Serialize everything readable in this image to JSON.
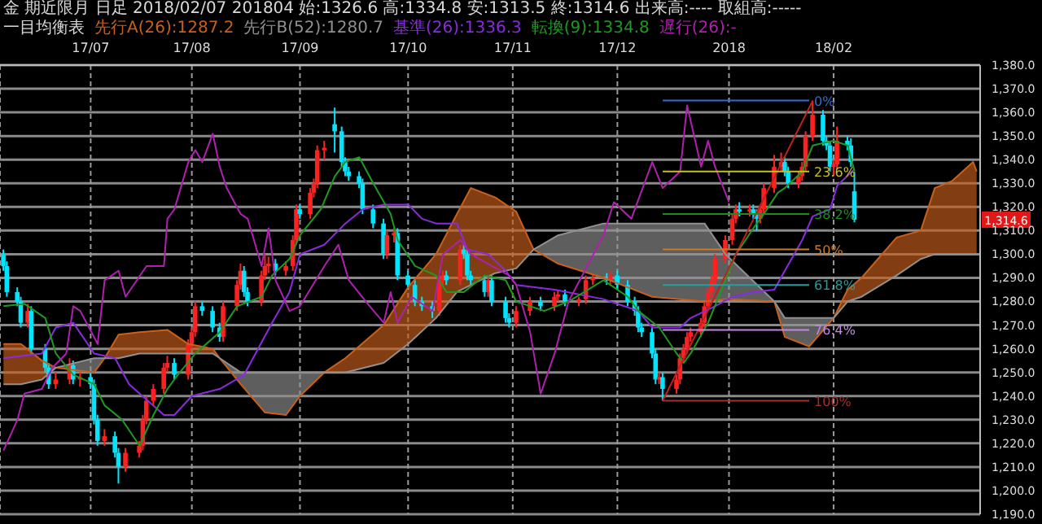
{
  "chart_data": {
    "type": "candlestick",
    "title": "金 期近限月 日足 2018/02/07 201804 始:1326.6 高:1334.8 安:1313.5 終:1314.6 出来高:---- 取組高:-----",
    "legend_title": "一目均衡表",
    "legend": "top",
    "grid": true,
    "xlim": [
      "2017-06-07",
      "2018-03-15"
    ],
    "xticks": [
      {
        "value": "2017-07-03",
        "label": "17/07"
      },
      {
        "value": "2017-08-01",
        "label": "17/08"
      },
      {
        "value": "2017-09-01",
        "label": "17/09"
      },
      {
        "value": "2017-10-02",
        "label": "17/10"
      },
      {
        "value": "2017-11-01",
        "label": "17/11"
      },
      {
        "value": "2017-12-01",
        "label": "17/12"
      },
      {
        "value": "2018-01-02",
        "label": "2018"
      },
      {
        "value": "2018-02-01",
        "label": "18/02"
      }
    ],
    "ylim": [
      1190,
      1380
    ],
    "yticks": [
      {
        "value": 1190,
        "label": "1,190.0"
      },
      {
        "value": 1200,
        "label": "1,200.0"
      },
      {
        "value": 1210,
        "label": "1,210.0"
      },
      {
        "value": 1220,
        "label": "1,220.0"
      },
      {
        "value": 1230,
        "label": "1,230.0"
      },
      {
        "value": 1240,
        "label": "1,240.0"
      },
      {
        "value": 1250,
        "label": "1,250.0"
      },
      {
        "value": 1260,
        "label": "1,260.0"
      },
      {
        "value": 1270,
        "label": "1,270.0"
      },
      {
        "value": 1280,
        "label": "1,280.0"
      },
      {
        "value": 1290,
        "label": "1,290.0"
      },
      {
        "value": 1300,
        "label": "1,300.0"
      },
      {
        "value": 1310,
        "label": "1,310.0"
      },
      {
        "value": 1320,
        "label": "1,320.0"
      },
      {
        "value": 1330,
        "label": "1,330.0"
      },
      {
        "value": 1340,
        "label": "1,340.0"
      },
      {
        "value": 1350,
        "label": "1,350.0"
      },
      {
        "value": 1360,
        "label": "1,360.0"
      },
      {
        "value": 1370,
        "label": "1,370.0"
      },
      {
        "value": 1380,
        "label": "1,380.0"
      }
    ],
    "annotations": [
      {
        "text": "1,314.6",
        "y": 1314.6
      },
      {
        "text": "0%",
        "x": "2018-01-25",
        "y": 1365
      },
      {
        "text": "23.6%",
        "x": "2018-01-25",
        "y": 1335
      },
      {
        "text": "38.2%",
        "x": "2018-01-25",
        "y": 1317
      },
      {
        "text": "50%",
        "x": "2018-01-25",
        "y": 1302
      },
      {
        "text": "61.8%",
        "x": "2018-01-25",
        "y": 1287
      },
      {
        "text": "76.4%",
        "x": "2018-01-25",
        "y": 1268
      },
      {
        "text": "100%",
        "x": "2018-01-25",
        "y": 1238
      }
    ],
    "series": [
      {
        "type": "line",
        "name": "先行A(26):1287.2",
        "color": "#c8601c",
        "lower": [
          1245,
          1245,
          1247,
          1252,
          null,
          1256,
          1256,
          1258,
          1258,
          1258,
          1258,
          1256,
          null,
          null,
          null,
          null,
          1250,
          1250,
          1254,
          1262,
          1273,
          1284,
          1287,
          1292,
          1294,
          1302,
          null,
          null,
          null,
          null,
          null,
          null,
          null,
          null,
          1273,
          1280,
          1282,
          1291,
          1298,
          1300,
          1300,
          1300,
          1300
        ],
        "upper": [
          1262,
          1262,
          1255,
          1252,
          null,
          1256,
          1266,
          1267,
          1268,
          1262,
          1260,
          1256,
          null,
          null,
          null,
          null,
          1250,
          1256,
          1270,
          1286,
          1300,
          1317,
          1328,
          1324,
          1318,
          1302,
          null,
          null,
          null,
          null,
          null,
          null,
          null,
          null,
          1273,
          1285,
          1290,
          1307,
          1310,
          1328,
          1331,
          1339,
          1335
        ],
        "x": [
          "2017-06-08",
          "2017-06-13",
          "2017-06-19",
          "2017-06-23",
          "2017-07-04",
          "2017-07-07",
          "2017-07-11",
          "2017-07-17",
          "2017-07-25",
          "2017-07-31",
          "2017-08-07",
          "2017-08-09",
          "2017-08-15",
          "2017-08-22",
          "2017-08-28",
          "2017-09-01",
          "2017-09-08",
          "2017-09-14",
          "2017-09-25",
          "2017-10-02",
          "2017-10-10",
          "2017-10-16",
          "2017-10-20",
          "2017-10-27",
          "2017-11-02",
          "2017-11-07",
          "2017-11-14",
          "2017-11-27",
          "2017-12-11",
          "2017-12-26",
          "2018-01-01",
          "2018-01-15",
          "2018-01-18",
          "2018-01-25",
          "2018-02-01",
          "2018-02-05",
          "2018-02-09",
          "2018-02-19",
          "2018-02-26",
          "2018-03-02",
          "2018-03-07",
          "2018-03-13",
          "2018-03-14"
        ],
        "values": [
          1262,
          1262,
          1255,
          1252,
          1250,
          1256,
          1266,
          1267,
          1268,
          1262,
          1260,
          1256,
          1245,
          1233,
          1232,
          1240,
          1250,
          1256,
          1270,
          1286,
          1300,
          1317,
          1328,
          1324,
          1318,
          1302,
          1296,
          1290,
          1282,
          1280,
          1281,
          1280,
          1265,
          1261,
          1273,
          1285,
          1290,
          1307,
          1310,
          1328,
          1331,
          1339,
          1335
        ]
      },
      {
        "type": "line",
        "name": "先行B(52):1280.7",
        "color": "#909090",
        "lower": [
          null,
          null,
          null,
          1252,
          1250,
          1256,
          null,
          null,
          null,
          null,
          null,
          1256,
          1245,
          1233,
          1232,
          1240,
          1250,
          null,
          null,
          null,
          null,
          null,
          null,
          null,
          null,
          1302,
          1296,
          1290,
          1282,
          1280,
          1281,
          1280,
          1265,
          1261,
          1273,
          null,
          null,
          null,
          null,
          null,
          null,
          null,
          null
        ],
        "upper": [
          null,
          null,
          null,
          1252,
          1256,
          1256,
          null,
          null,
          null,
          null,
          null,
          1256,
          1250,
          1250,
          1250,
          1250,
          1250,
          null,
          null,
          null,
          null,
          null,
          null,
          null,
          null,
          1302,
          1308,
          1313,
          1313,
          1313,
          1300,
          1280,
          1273,
          1273,
          1273,
          null,
          null,
          null,
          null,
          null,
          null,
          null,
          null
        ],
        "x": [
          "2017-06-08",
          "2017-06-13",
          "2017-06-19",
          "2017-06-23",
          "2017-07-04",
          "2017-07-07",
          "2017-07-11",
          "2017-07-17",
          "2017-07-25",
          "2017-07-31",
          "2017-08-07",
          "2017-08-09",
          "2017-08-15",
          "2017-08-22",
          "2017-08-28",
          "2017-09-01",
          "2017-09-08",
          "2017-09-14",
          "2017-09-25",
          "2017-10-02",
          "2017-10-10",
          "2017-10-16",
          "2017-10-20",
          "2017-10-27",
          "2017-11-02",
          "2017-11-07",
          "2017-11-14",
          "2017-11-27",
          "2017-12-11",
          "2017-12-26",
          "2018-01-01",
          "2018-01-15",
          "2018-01-18",
          "2018-01-25",
          "2018-02-01",
          "2018-02-05",
          "2018-02-09",
          "2018-02-19",
          "2018-02-26",
          "2018-03-02",
          "2018-03-07",
          "2018-03-13",
          "2018-03-14"
        ],
        "values": [
          1245,
          1245,
          1247,
          1252,
          1256,
          1256,
          1256,
          1258,
          1258,
          1258,
          1258,
          1256,
          1250,
          1250,
          1250,
          1250,
          1250,
          1250,
          1254,
          1262,
          1273,
          1284,
          1287,
          1292,
          1294,
          1302,
          1308,
          1313,
          1313,
          1313,
          1300,
          1280,
          1273,
          1273,
          1273,
          1280,
          1282,
          1291,
          1298,
          1300,
          1300,
          1300,
          1300
        ]
      },
      {
        "type": "line",
        "name": "基準(26):1336.3",
        "color": "#8a2be2",
        "x": [
          "2017-06-08",
          "2017-06-19",
          "2017-06-23",
          "2017-06-28",
          "2017-07-04",
          "2017-07-10",
          "2017-07-14",
          "2017-07-24",
          "2017-07-27",
          "2017-08-01",
          "2017-08-09",
          "2017-08-16",
          "2017-08-24",
          "2017-08-29",
          "2017-09-01",
          "2017-09-08",
          "2017-09-14",
          "2017-09-19",
          "2017-09-25",
          "2017-10-02",
          "2017-10-06",
          "2017-10-10",
          "2017-10-16",
          "2017-10-19",
          "2017-10-25",
          "2017-10-30",
          "2017-11-02",
          "2017-11-13",
          "2017-11-27",
          "2017-12-07",
          "2017-12-11",
          "2017-12-19",
          "2017-12-22",
          "2017-12-29",
          "2018-01-03",
          "2018-01-09",
          "2018-01-15",
          "2018-01-18",
          "2018-01-23",
          "2018-01-26",
          "2018-01-31",
          "2018-02-02",
          "2018-02-07"
        ],
        "values": [
          1256,
          1258,
          1269,
          1271,
          1258,
          1256,
          1245,
          1232,
          1232,
          1240,
          1243,
          1249,
          1271,
          1284,
          1300,
          1304,
          1313,
          1319,
          1321,
          1321,
          1315,
          1313,
          1313,
          1302,
          1300,
          1293,
          1287,
          1285,
          1281,
          1276,
          1269,
          1269,
          1273,
          1278,
          1282,
          1284,
          1285,
          1293,
          1306,
          1316,
          1319,
          1329,
          1336
        ]
      },
      {
        "type": "line",
        "name": "転換(9):1334.8",
        "color": "#1f9a1f",
        "x": [
          "2017-06-08",
          "2017-06-14",
          "2017-06-20",
          "2017-06-23",
          "2017-06-28",
          "2017-07-04",
          "2017-07-07",
          "2017-07-12",
          "2017-07-17",
          "2017-07-21",
          "2017-07-25",
          "2017-07-28",
          "2017-08-02",
          "2017-08-09",
          "2017-08-14",
          "2017-08-21",
          "2017-08-24",
          "2017-08-29",
          "2017-09-01",
          "2017-09-07",
          "2017-09-11",
          "2017-09-14",
          "2017-09-18",
          "2017-09-22",
          "2017-09-27",
          "2017-09-29",
          "2017-10-04",
          "2017-10-10",
          "2017-10-13",
          "2017-10-18",
          "2017-10-24",
          "2017-10-30",
          "2017-11-02",
          "2017-11-10",
          "2017-11-17",
          "2017-11-27",
          "2017-12-04",
          "2017-12-07",
          "2017-12-13",
          "2017-12-18",
          "2017-12-20",
          "2017-12-22",
          "2017-12-27",
          "2018-01-01",
          "2018-01-04",
          "2018-01-09",
          "2018-01-12",
          "2018-01-16",
          "2018-01-18",
          "2018-01-23",
          "2018-01-26",
          "2018-02-01",
          "2018-02-05",
          "2018-02-07"
        ],
        "values": [
          1278,
          1279,
          1273,
          1258,
          1249,
          1245,
          1236,
          1230,
          1219,
          1232,
          1243,
          1249,
          1258,
          1267,
          1278,
          1282,
          1291,
          1298,
          1308,
          1319,
          1333,
          1339,
          1341,
          1330,
          1317,
          1306,
          1295,
          1291,
          1284,
          1284,
          1291,
          1289,
          1280,
          1276,
          1280,
          1289,
          1282,
          1276,
          1269,
          1258,
          1254,
          1258,
          1271,
          1289,
          1300,
          1311,
          1317,
          1326,
          1328,
          1335,
          1346,
          1348,
          1346,
          1335
        ]
      },
      {
        "type": "line",
        "name": "遅行(26):-",
        "color": "#b020b0",
        "x": [
          "2017-06-08",
          "2017-06-12",
          "2017-06-14",
          "2017-06-19",
          "2017-06-22",
          "2017-06-26",
          "2017-06-28",
          "2017-06-30",
          "2017-07-05",
          "2017-07-07",
          "2017-07-11",
          "2017-07-13",
          "2017-07-19",
          "2017-07-24",
          "2017-07-25",
          "2017-07-27",
          "2017-07-31",
          "2017-08-02",
          "2017-08-04",
          "2017-08-07",
          "2017-08-09",
          "2017-08-11",
          "2017-08-15",
          "2017-08-17",
          "2017-08-21",
          "2017-08-23",
          "2017-08-25",
          "2017-08-29",
          "2017-09-01",
          "2017-09-08",
          "2017-09-12",
          "2017-09-15",
          "2017-09-21",
          "2017-09-25",
          "2017-09-27",
          "2017-09-29",
          "2017-10-03",
          "2017-10-09",
          "2017-10-12",
          "2017-10-17",
          "2017-10-20",
          "2017-10-26",
          "2017-10-31",
          "2017-11-02",
          "2017-11-06",
          "2017-11-09",
          "2017-11-13",
          "2017-11-17",
          "2017-11-27",
          "2017-11-30",
          "2017-12-05",
          "2017-12-11",
          "2017-12-14",
          "2017-12-19",
          "2017-12-21",
          "2017-12-25",
          "2017-12-27",
          "2017-12-29",
          "2018-01-02"
        ],
        "values": [
          1217,
          1230,
          1241,
          1243,
          1252,
          1258,
          1278,
          1276,
          1262,
          1289,
          1293,
          1282,
          1295,
          1295,
          1315,
          1319,
          1339,
          1344,
          1339,
          1351,
          1337,
          1328,
          1317,
          1315,
          1295,
          1311,
          1289,
          1276,
          1278,
          1295,
          1304,
          1289,
          1278,
          1271,
          1284,
          1271,
          1282,
          1276,
          1300,
          1306,
          1300,
          1295,
          1291,
          1287,
          1267,
          1241,
          1258,
          1280,
          1308,
          1322,
          1315,
          1339,
          1328,
          1335,
          1363,
          1337,
          1348,
          1337,
          1322
        ]
      },
      {
        "type": "line",
        "color": "#c02020",
        "x": [
          "2017-12-14",
          "2018-01-26"
        ],
        "values": [
          1238,
          1365
        ]
      },
      {
        "type": "line",
        "color": "#2f6fd0",
        "x": [
          "2017-12-14",
          "2018-01-25"
        ],
        "values": [
          1365,
          1365
        ]
      },
      {
        "type": "line",
        "color": "#c8c020",
        "x": [
          "2017-12-14",
          "2018-01-25"
        ],
        "values": [
          1335,
          1335
        ]
      },
      {
        "type": "line",
        "color": "#1f8a1f",
        "x": [
          "2017-12-14",
          "2018-01-25"
        ],
        "values": [
          1317,
          1317
        ]
      },
      {
        "type": "line",
        "color": "#c87a28",
        "x": [
          "2017-12-14",
          "2018-01-25"
        ],
        "values": [
          1302,
          1302
        ]
      },
      {
        "type": "line",
        "color": "#20a0a0",
        "x": [
          "2017-12-14",
          "2018-01-25"
        ],
        "values": [
          1287,
          1287
        ]
      },
      {
        "type": "line",
        "color": "#c08ae0",
        "x": [
          "2017-12-14",
          "2018-01-25"
        ],
        "values": [
          1268,
          1268
        ]
      },
      {
        "type": "line",
        "color": "#a03030",
        "x": [
          "2017-12-14",
          "2018-01-25"
        ],
        "values": [
          1238,
          1238
        ]
      },
      {
        "color": "#ff2020",
        "x": [
          "2017-06-15",
          "2017-06-23",
          "2017-06-27",
          "2017-06-30",
          "2017-07-07",
          "2017-07-13",
          "2017-07-17",
          "2017-07-18",
          "2017-07-19",
          "2017-07-21",
          "2017-07-24",
          "2017-07-25",
          "2017-07-31",
          "2017-08-01",
          "2017-08-02",
          "2017-08-10",
          "2017-08-14",
          "2017-08-15",
          "2017-08-21",
          "2017-08-22",
          "2017-08-23",
          "2017-08-28",
          "2017-08-30",
          "2017-08-31",
          "2017-09-04",
          "2017-09-05",
          "2017-09-06",
          "2017-09-08",
          "2017-09-26",
          "2017-09-28",
          "2017-10-11",
          "2017-10-12",
          "2017-10-17",
          "2017-10-25",
          "2017-11-02",
          "2017-11-06",
          "2017-11-13",
          "2017-11-14",
          "2017-11-20",
          "2017-11-22",
          "2017-11-24",
          "2017-11-29",
          "2017-12-13",
          "2017-12-18",
          "2017-12-19",
          "2017-12-20",
          "2017-12-21",
          "2017-12-22",
          "2017-12-25",
          "2017-12-26",
          "2017-12-27",
          "2017-12-28",
          "2017-12-29",
          "2018-01-01",
          "2018-01-03",
          "2018-01-04",
          "2018-01-08",
          "2018-01-11",
          "2018-01-12",
          "2018-01-15",
          "2018-01-17",
          "2018-01-22",
          "2018-01-23",
          "2018-01-24",
          "2018-01-26",
          "2018-02-01",
          "2018-02-02"
        ],
        "ohlc": [
          [
            1271,
            1279,
            1269,
            1276
          ],
          [
            1245,
            1250,
            1243,
            1247
          ],
          [
            1247,
            1256,
            1245,
            1253
          ],
          [
            1247,
            1250,
            1244,
            1248
          ],
          [
            1221,
            1226,
            1219,
            1223
          ],
          [
            1210,
            1218,
            1208,
            1216
          ],
          [
            1216,
            1221,
            1214,
            1219
          ],
          [
            1219,
            1232,
            1217,
            1230
          ],
          [
            1230,
            1240,
            1228,
            1238
          ],
          [
            1238,
            1245,
            1236,
            1243
          ],
          [
            1243,
            1254,
            1241,
            1252
          ],
          [
            1252,
            1257,
            1250,
            1254
          ],
          [
            1249,
            1264,
            1247,
            1262
          ],
          [
            1262,
            1269,
            1260,
            1267
          ],
          [
            1267,
            1280,
            1265,
            1278
          ],
          [
            1265,
            1280,
            1263,
            1278
          ],
          [
            1278,
            1289,
            1276,
            1287
          ],
          [
            1287,
            1296,
            1285,
            1293
          ],
          [
            1280,
            1293,
            1278,
            1291
          ],
          [
            1291,
            1300,
            1289,
            1295
          ],
          [
            1295,
            1299,
            1292,
            1296
          ],
          [
            1293,
            1297,
            1291,
            1295
          ],
          [
            1295,
            1308,
            1293,
            1306
          ],
          [
            1306,
            1321,
            1304,
            1319
          ],
          [
            1317,
            1328,
            1315,
            1326
          ],
          [
            1326,
            1332,
            1324,
            1330
          ],
          [
            1330,
            1346,
            1328,
            1344
          ],
          [
            1344,
            1348,
            1340,
            1345
          ],
          [
            1300,
            1310,
            1298,
            1308
          ],
          [
            1308,
            1311,
            1305,
            1309
          ],
          [
            1276,
            1291,
            1274,
            1289
          ],
          [
            1289,
            1293,
            1287,
            1291
          ],
          [
            1289,
            1304,
            1287,
            1302
          ],
          [
            1284,
            1291,
            1282,
            1289
          ],
          [
            1271,
            1278,
            1269,
            1276
          ],
          [
            1276,
            1282,
            1274,
            1280
          ],
          [
            1278,
            1284,
            1276,
            1282
          ],
          [
            1282,
            1285,
            1280,
            1283
          ],
          [
            1280,
            1282,
            1278,
            1281
          ],
          [
            1281,
            1291,
            1279,
            1289
          ],
          [
            1289,
            1292,
            1287,
            1290
          ],
          [
            1289,
            1293,
            1287,
            1291
          ],
          [
            1247,
            1250,
            1245,
            1248
          ],
          [
            1243,
            1249,
            1241,
            1247
          ],
          [
            1247,
            1258,
            1245,
            1256
          ],
          [
            1256,
            1262,
            1254,
            1260
          ],
          [
            1260,
            1267,
            1258,
            1265
          ],
          [
            1265,
            1269,
            1263,
            1267
          ],
          [
            1267,
            1273,
            1265,
            1271
          ],
          [
            1271,
            1280,
            1269,
            1278
          ],
          [
            1278,
            1286,
            1276,
            1284
          ],
          [
            1284,
            1291,
            1282,
            1289
          ],
          [
            1289,
            1300,
            1287,
            1298
          ],
          [
            1298,
            1308,
            1296,
            1306
          ],
          [
            1306,
            1317,
            1304,
            1315
          ],
          [
            1315,
            1321,
            1313,
            1319
          ],
          [
            1318,
            1321,
            1316,
            1319
          ],
          [
            1315,
            1321,
            1313,
            1319
          ],
          [
            1319,
            1330,
            1317,
            1328
          ],
          [
            1328,
            1342,
            1326,
            1337
          ],
          [
            1337,
            1343,
            1335,
            1339
          ],
          [
            1330,
            1335,
            1328,
            1333
          ],
          [
            1333,
            1339,
            1331,
            1337
          ],
          [
            1337,
            1352,
            1335,
            1350
          ],
          [
            1350,
            1365,
            1348,
            1359
          ],
          [
            1337,
            1340,
            1333,
            1338
          ],
          [
            1338,
            1354,
            1336,
            1348
          ]
        ]
      },
      {
        "color": "#00e5ff",
        "x": [
          "2017-06-08",
          "2017-06-09",
          "2017-06-12",
          "2017-06-13",
          "2017-06-16",
          "2017-06-20",
          "2017-06-21",
          "2017-06-28",
          "2017-07-03",
          "2017-07-04",
          "2017-07-05",
          "2017-07-10",
          "2017-07-11",
          "2017-07-27",
          "2017-08-04",
          "2017-08-07",
          "2017-08-09",
          "2017-08-16",
          "2017-08-17",
          "2017-08-25",
          "2017-09-01",
          "2017-09-11",
          "2017-09-13",
          "2017-09-14",
          "2017-09-15",
          "2017-09-18",
          "2017-09-19",
          "2017-09-22",
          "2017-09-25",
          "2017-09-29",
          "2017-10-02",
          "2017-10-04",
          "2017-10-06",
          "2017-10-09",
          "2017-10-13",
          "2017-10-18",
          "2017-10-19",
          "2017-10-20",
          "2017-10-24",
          "2017-10-26",
          "2017-10-30",
          "2017-10-31",
          "2017-11-09",
          "2017-11-16",
          "2017-11-28",
          "2017-12-01",
          "2017-12-04",
          "2017-12-06",
          "2017-12-07",
          "2017-12-08",
          "2017-12-11",
          "2017-12-12",
          "2017-12-14",
          "2018-01-05",
          "2018-01-09",
          "2018-01-10",
          "2018-01-18",
          "2018-01-19",
          "2018-01-29",
          "2018-01-30",
          "2018-01-31",
          "2018-02-05",
          "2018-02-06",
          "2018-02-07"
        ],
        "ohlc": [
          [
            1300,
            1302,
            1293,
            1295
          ],
          [
            1295,
            1297,
            1282,
            1284
          ],
          [
            1284,
            1286,
            1278,
            1280
          ],
          [
            1280,
            1282,
            1269,
            1271
          ],
          [
            1276,
            1278,
            1258,
            1260
          ],
          [
            1260,
            1262,
            1250,
            1252
          ],
          [
            1252,
            1254,
            1243,
            1245
          ],
          [
            1253,
            1255,
            1245,
            1247
          ],
          [
            1248,
            1250,
            1243,
            1245
          ],
          [
            1245,
            1247,
            1228,
            1230
          ],
          [
            1230,
            1232,
            1219,
            1221
          ],
          [
            1223,
            1225,
            1214,
            1216
          ],
          [
            1216,
            1218,
            1203,
            1210
          ],
          [
            1254,
            1256,
            1247,
            1249
          ],
          [
            1278,
            1280,
            1274,
            1276
          ],
          [
            1276,
            1278,
            1267,
            1269
          ],
          [
            1269,
            1271,
            1263,
            1265
          ],
          [
            1293,
            1295,
            1282,
            1284
          ],
          [
            1284,
            1286,
            1278,
            1280
          ],
          [
            1296,
            1298,
            1291,
            1293
          ],
          [
            1319,
            1321,
            1315,
            1317
          ],
          [
            1355,
            1362,
            1343,
            1352
          ],
          [
            1352,
            1354,
            1337,
            1339
          ],
          [
            1339,
            1341,
            1333,
            1335
          ],
          [
            1335,
            1337,
            1331,
            1333
          ],
          [
            1333,
            1335,
            1328,
            1330
          ],
          [
            1330,
            1332,
            1317,
            1319
          ],
          [
            1319,
            1321,
            1311,
            1313
          ],
          [
            1313,
            1315,
            1298,
            1300
          ],
          [
            1309,
            1311,
            1289,
            1291
          ],
          [
            1291,
            1293,
            1285,
            1287
          ],
          [
            1287,
            1289,
            1278,
            1280
          ],
          [
            1280,
            1282,
            1276,
            1278
          ],
          [
            1278,
            1280,
            1273,
            1276
          ],
          [
            1291,
            1293,
            1287,
            1289
          ],
          [
            1302,
            1304,
            1298,
            1300
          ],
          [
            1300,
            1302,
            1289,
            1291
          ],
          [
            1291,
            1293,
            1287,
            1289
          ],
          [
            1289,
            1291,
            1282,
            1284
          ],
          [
            1289,
            1291,
            1278,
            1280
          ],
          [
            1280,
            1282,
            1271,
            1273
          ],
          [
            1273,
            1275,
            1269,
            1271
          ],
          [
            1280,
            1282,
            1276,
            1278
          ],
          [
            1283,
            1285,
            1278,
            1280
          ],
          [
            1290,
            1292,
            1287,
            1289
          ],
          [
            1291,
            1293,
            1285,
            1287
          ],
          [
            1287,
            1289,
            1278,
            1280
          ],
          [
            1280,
            1282,
            1274,
            1276
          ],
          [
            1276,
            1278,
            1267,
            1269
          ],
          [
            1269,
            1271,
            1265,
            1267
          ],
          [
            1267,
            1269,
            1256,
            1258
          ],
          [
            1258,
            1260,
            1245,
            1247
          ],
          [
            1248,
            1250,
            1238,
            1243
          ],
          [
            1319,
            1322,
            1316,
            1318
          ],
          [
            1319,
            1321,
            1315,
            1317
          ],
          [
            1317,
            1319,
            1310,
            1315
          ],
          [
            1339,
            1341,
            1333,
            1335
          ],
          [
            1335,
            1337,
            1328,
            1330
          ],
          [
            1359,
            1361,
            1346,
            1348
          ],
          [
            1348,
            1350,
            1344,
            1346
          ],
          [
            1346,
            1348,
            1335,
            1337
          ],
          [
            1348,
            1350,
            1344,
            1346
          ],
          [
            1346,
            1349,
            1337,
            1339
          ],
          [
            1326.6,
            1334.8,
            1313.5,
            1314.6
          ]
        ]
      }
    ]
  }
}
